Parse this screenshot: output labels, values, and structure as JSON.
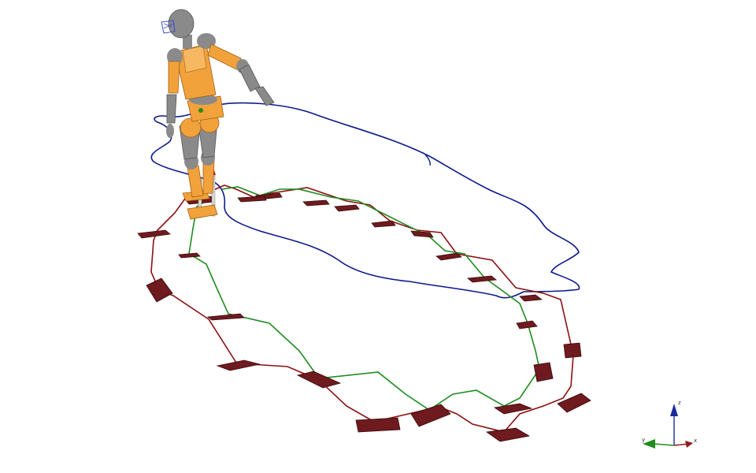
{
  "scene": {
    "background": "#ffffff",
    "robot_skin": "#f2a23a",
    "robot_joint": "#8a8a8a",
    "footstep_color": "#6e1a1e",
    "com_path_color": "#0d1a8c",
    "swing_path_green": "#1f8c1f",
    "swing_path_red": "#8c1010",
    "axes": {
      "z_color": "#1b2a9e",
      "x_color": "#8c1c1c",
      "y_color": "#1f8c1f",
      "labels": {
        "z": "z",
        "x": "x",
        "y": "y"
      }
    }
  }
}
